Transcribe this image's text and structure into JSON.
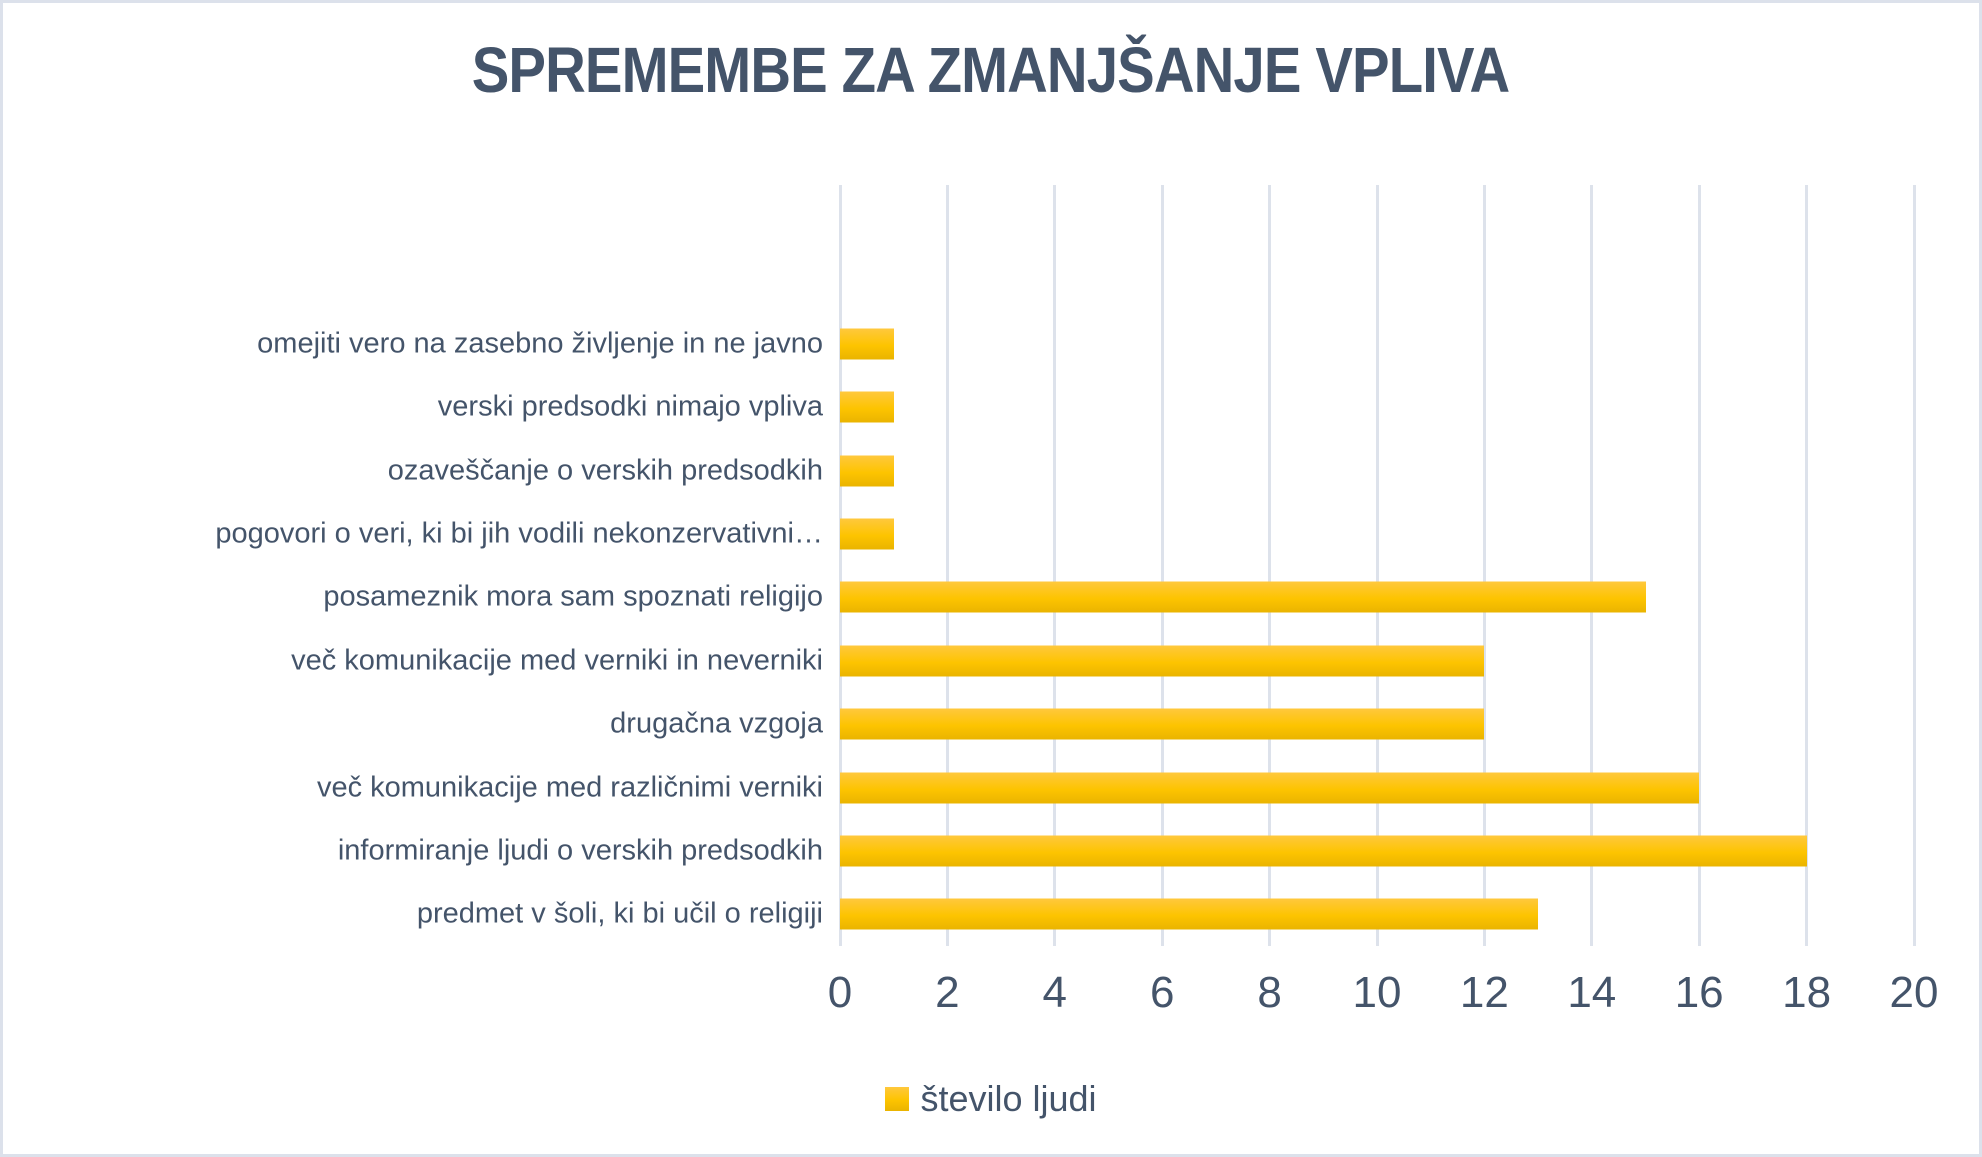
{
  "title": "SPREMEMBE ZA ZMANJŠANJE VPLIVA",
  "legend": {
    "label": "število ljudi"
  },
  "chart_data": {
    "type": "bar",
    "orientation": "horizontal",
    "title": "SPREMEMBE ZA ZMANJŠANJE VPLIVA",
    "series_name": "število ljudi",
    "categories": [
      "omejiti vero na zasebno življenje in ne javno",
      "verski predsodki nimajo vpliva",
      "ozaveščanje o verskih predsodkih",
      "pogovori o veri, ki bi jih vodili nekonzervativni…",
      "posameznik mora sam spoznati religijo",
      "več komunikacije med verniki in neverniki",
      "drugačna vzgoja",
      "več komunikacije med različnimi verniki",
      "informiranje ljudi o verskih predsodkih",
      "predmet v šoli, ki bi učil o religiji"
    ],
    "values": [
      1,
      1,
      1,
      1,
      15,
      12,
      12,
      16,
      18,
      13
    ],
    "xlabel": "",
    "ylabel": "",
    "xlim": [
      0,
      20
    ],
    "xticks": [
      0,
      2,
      4,
      6,
      8,
      10,
      12,
      14,
      16,
      18,
      20
    ],
    "grid": "vertical gridlines every 2 units",
    "legend_position": "bottom-center",
    "empty_top_bands": 2,
    "colors": {
      "bar_gradient_top": "#FFC83D",
      "bar_gradient_mid": "#FDC400",
      "bar_gradient_bottom": "#EAB400",
      "text": "#44546A",
      "gridline": "#DDE2EB",
      "frame_border": "#DCE1EB",
      "background": "#FFFFFF"
    }
  }
}
